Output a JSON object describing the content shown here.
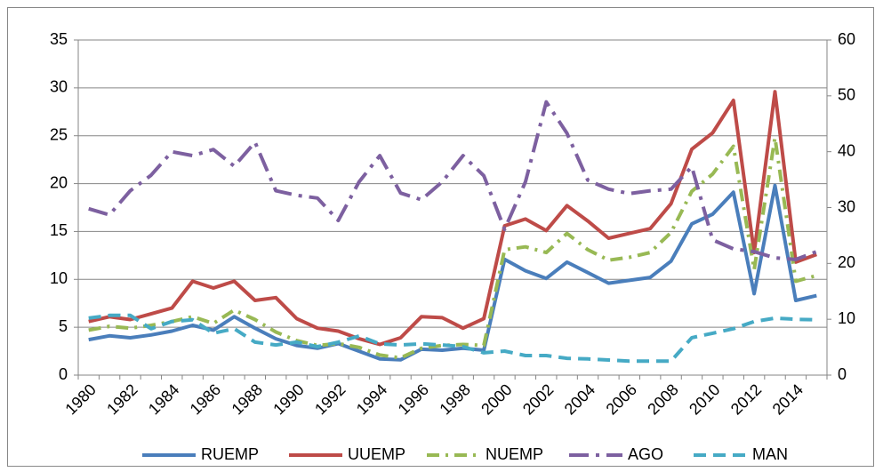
{
  "chart_data": {
    "type": "line",
    "categories": [
      "1980",
      null,
      "1982",
      null,
      "1984",
      null,
      "1986",
      null,
      "1988",
      null,
      "1990",
      null,
      "1992",
      null,
      "1994",
      null,
      "1996",
      null,
      "1998",
      null,
      "2000",
      null,
      "2002",
      null,
      "2004",
      null,
      "2006",
      null,
      "2008",
      null,
      "2010",
      null,
      "2012",
      null,
      "2014",
      null
    ],
    "ylim": [
      0,
      35
    ],
    "yticks": [
      0,
      5,
      10,
      15,
      20,
      25,
      30,
      35
    ],
    "y2lim": [
      0,
      60
    ],
    "y2ticks": [
      0,
      10,
      20,
      30,
      40,
      50,
      60
    ],
    "grid": true,
    "legend": "bottom",
    "series": [
      {
        "name": "RUEMP",
        "color": "#4a7ebb",
        "dash": "solid",
        "values": [
          3.7,
          4.1,
          3.9,
          4.2,
          4.6,
          5.2,
          4.7,
          6.1,
          4.9,
          3.8,
          3.1,
          2.8,
          3.3,
          2.5,
          1.7,
          1.6,
          2.7,
          2.6,
          2.8,
          2.6,
          12.1,
          10.9,
          10.1,
          11.8,
          10.7,
          9.6,
          9.9,
          10.2,
          11.9,
          15.8,
          16.8,
          19.1,
          8.5,
          19.8,
          7.8,
          8.3
        ]
      },
      {
        "name": "UUEMP",
        "color": "#be4b48",
        "dash": "solid",
        "values": [
          5.6,
          6.1,
          5.8,
          6.4,
          7.0,
          9.8,
          9.1,
          9.8,
          7.8,
          8.1,
          5.9,
          4.9,
          4.6,
          3.8,
          3.2,
          3.9,
          6.1,
          6.0,
          4.9,
          5.9,
          15.6,
          16.3,
          15.1,
          17.7,
          16.1,
          14.3,
          14.8,
          15.3,
          17.9,
          23.6,
          25.3,
          28.7,
          12.8,
          29.6,
          11.8,
          12.6
        ]
      },
      {
        "name": "NUEMP",
        "color": "#98b954",
        "dash": "long-dash-dot",
        "values": [
          4.7,
          5.1,
          4.9,
          5.2,
          5.6,
          6.1,
          5.4,
          6.8,
          5.8,
          4.5,
          3.6,
          3.1,
          3.3,
          2.9,
          2.1,
          1.8,
          2.8,
          3.1,
          3.2,
          3.1,
          13.1,
          13.4,
          12.8,
          14.8,
          13.1,
          12.0,
          12.3,
          12.8,
          14.9,
          19.2,
          21.0,
          23.9,
          11.0,
          24.8,
          9.8,
          10.4
        ]
      },
      {
        "name": "AGO",
        "color": "#7d60a0",
        "dash": "long-dash-dot-dot",
        "axis": "y2",
        "values": [
          29.8,
          28.7,
          33,
          35.8,
          40,
          39.3,
          40.4,
          37.4,
          41.7,
          33,
          32.2,
          31.7,
          27.7,
          34.6,
          39.3,
          32.6,
          31.4,
          34.6,
          39.3,
          35.7,
          26.1,
          34.6,
          48.9,
          43.3,
          34.9,
          33.3,
          32.5,
          33,
          33.3,
          37.3,
          24.2,
          22.6,
          22.1,
          21,
          20.7,
          22.1
        ]
      },
      {
        "name": "MAN",
        "color": "#46aac5",
        "dash": "dash",
        "axis": "y2",
        "values": [
          10.2,
          10.7,
          10.7,
          8.3,
          9.6,
          9.9,
          7.5,
          8.3,
          5.9,
          5.4,
          5.9,
          5.1,
          5.9,
          7,
          5.6,
          5.4,
          5.6,
          5.4,
          5.1,
          4,
          4.3,
          3.5,
          3.5,
          3,
          2.9,
          2.7,
          2.5,
          2.5,
          2.5,
          6.7,
          7.5,
          8.3,
          9.6,
          10.2,
          10,
          9.9
        ]
      }
    ]
  }
}
